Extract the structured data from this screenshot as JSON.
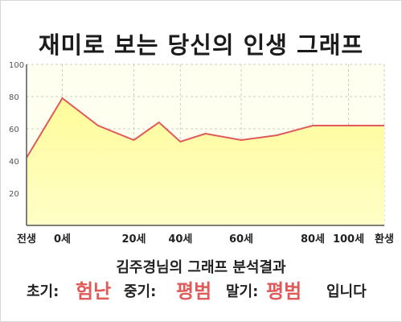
{
  "title": "재미로 보는 당신의 인생 그래프",
  "chart_data": {
    "type": "area",
    "title": "재미로 보는 당신의 인생 그래프",
    "x": [
      0,
      10,
      20,
      30,
      37,
      43,
      50,
      60,
      70,
      80,
      90,
      100
    ],
    "x_unit": "세",
    "ylim": [
      0,
      100
    ],
    "yticks": [
      20,
      40,
      60,
      80,
      100
    ],
    "series": [
      {
        "values": [
          42,
          79,
          62,
          53,
          64,
          52,
          57,
          53,
          56,
          62,
          62,
          62
        ]
      }
    ],
    "x_tick_labels": [
      "전생",
      "0세",
      "20세",
      "40세",
      "60세",
      "80세",
      "100세",
      "환생"
    ],
    "x_tick_values": [
      0,
      10,
      30,
      43,
      60,
      80,
      90,
      100
    ],
    "grid": true,
    "colors": {
      "line": "#e05a5a",
      "fill": "#ffffb8",
      "plot_bg": "#fffff0",
      "grid": "#cccccc"
    }
  },
  "result": {
    "heading": "김주경님의 그래프 분석결과",
    "early_label": "초기:",
    "early_value": "험난",
    "mid_label": "중기:",
    "mid_value": "평범",
    "late_label": "말기:",
    "late_value": "평범",
    "suffix": "입니다",
    "value_color": "#e05a5a"
  }
}
